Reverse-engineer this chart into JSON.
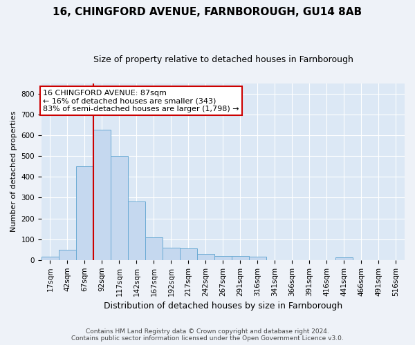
{
  "title_line1": "16, CHINGFORD AVENUE, FARNBOROUGH, GU14 8AB",
  "title_line2": "Size of property relative to detached houses in Farnborough",
  "xlabel": "Distribution of detached houses by size in Farnborough",
  "ylabel": "Number of detached properties",
  "footer_line1": "Contains HM Land Registry data © Crown copyright and database right 2024.",
  "footer_line2": "Contains public sector information licensed under the Open Government Licence v3.0.",
  "bin_labels": [
    "17sqm",
    "42sqm",
    "67sqm",
    "92sqm",
    "117sqm",
    "142sqm",
    "167sqm",
    "192sqm",
    "217sqm",
    "242sqm",
    "267sqm",
    "291sqm",
    "316sqm",
    "341sqm",
    "366sqm",
    "391sqm",
    "416sqm",
    "441sqm",
    "466sqm",
    "491sqm",
    "516sqm"
  ],
  "bar_values": [
    15,
    50,
    450,
    625,
    500,
    280,
    110,
    60,
    55,
    30,
    20,
    20,
    15,
    0,
    0,
    0,
    0,
    12,
    0,
    0,
    0
  ],
  "bar_color": "#c5d8ef",
  "bar_edge_color": "#6aaad4",
  "bar_width": 1.0,
  "ylim": [
    0,
    850
  ],
  "yticks": [
    0,
    100,
    200,
    300,
    400,
    500,
    600,
    700,
    800
  ],
  "vline_color": "#cc0000",
  "vline_pos": 2.5,
  "annotation_text": "16 CHINGFORD AVENUE: 87sqm\n← 16% of detached houses are smaller (343)\n83% of semi-detached houses are larger (1,798) →",
  "annotation_box_color": "#ffffff",
  "annotation_box_edge": "#cc0000",
  "background_color": "#eef2f8",
  "plot_bg_color": "#dce8f5",
  "title_fontsize": 11,
  "subtitle_fontsize": 9,
  "ylabel_fontsize": 8,
  "xlabel_fontsize": 9,
  "tick_fontsize": 7.5,
  "footer_fontsize": 6.5
}
